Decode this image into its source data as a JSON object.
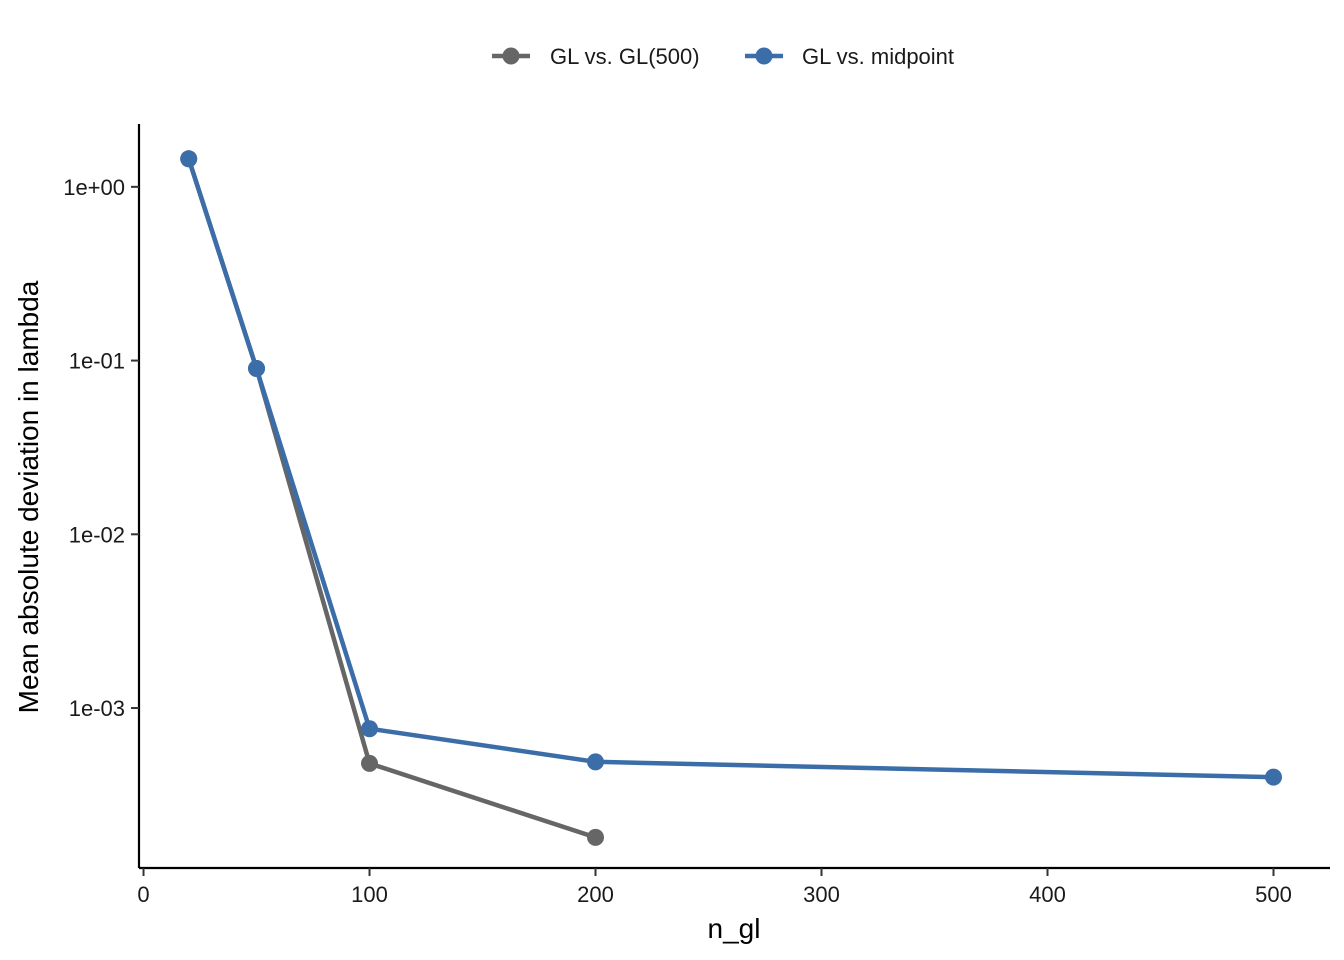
{
  "chart_data": {
    "type": "line",
    "title": "",
    "xlabel": "n_gl",
    "ylabel": "Mean absolute deviation in lambda",
    "y_scale": "log10",
    "xlim": [
      -2,
      525
    ],
    "ylim": [
      0.00012,
      2.3
    ],
    "x_ticks": [
      0,
      100,
      200,
      300,
      400,
      500
    ],
    "x_tick_labels": [
      "0",
      "100",
      "200",
      "300",
      "400",
      "500"
    ],
    "y_ticks": [
      1,
      0.1,
      0.01,
      0.001
    ],
    "y_tick_labels": [
      "1e+00",
      "1e-01",
      "1e-02",
      "1e-03"
    ],
    "grid": false,
    "legend_position": "top",
    "series": [
      {
        "name": "GL vs. GL(500)",
        "color": "#666666",
        "x": [
          20,
          50,
          100,
          200
        ],
        "values": [
          1.45,
          0.09,
          0.00048,
          0.00018
        ]
      },
      {
        "name": "GL vs. midpoint",
        "color": "#3b6ea8",
        "x": [
          20,
          50,
          100,
          200,
          500
        ],
        "values": [
          1.45,
          0.09,
          0.00076,
          0.00049,
          0.0004
        ]
      }
    ]
  }
}
